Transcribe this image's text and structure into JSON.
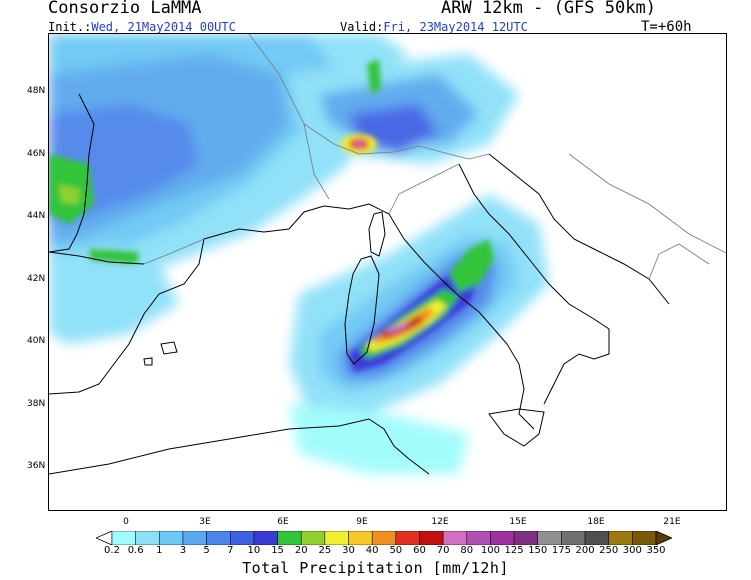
{
  "header": {
    "organization": "Consorzio LaMMA",
    "model": "ARW 12km - (GFS 50km)",
    "init_label": "Init.:",
    "init_value": "Wed, 21May2014 00UTC",
    "valid_label": "Valid:",
    "valid_value": "Fri, 23May2014 12UTC",
    "lead_time": "T=+60h"
  },
  "map": {
    "lat_labels": [
      "48N",
      "46N",
      "44N",
      "42N",
      "40N",
      "38N",
      "36N"
    ],
    "lon_labels": [
      "0",
      "3E",
      "6E",
      "9E",
      "12E",
      "15E",
      "18E",
      "21E"
    ],
    "field": "Total Precipitation",
    "max_area": "Tyrrhenian Sea, east of Sardinia"
  },
  "colorbar": {
    "title": "Total Precipitation [mm/12h]",
    "tick_labels": [
      "0.2",
      "0.6",
      "1",
      "3",
      "5",
      "7",
      "10",
      "15",
      "20",
      "25",
      "30",
      "40",
      "50",
      "60",
      "70",
      "80",
      "100",
      "125",
      "150",
      "175",
      "200",
      "250",
      "300",
      "350"
    ],
    "colors": [
      "#9ffcfc",
      "#8ce0f8",
      "#6cc8f4",
      "#5aa8ee",
      "#4d84ea",
      "#4060e4",
      "#3a3ad6",
      "#32c43a",
      "#90d030",
      "#f0f030",
      "#f6c828",
      "#f09020",
      "#e23020",
      "#c21010",
      "#d070c0",
      "#b050b0",
      "#a030a0",
      "#803080",
      "#909090",
      "#707070",
      "#505050",
      "#9a7a10",
      "#7a5a08",
      "#5a3a08"
    ]
  }
}
